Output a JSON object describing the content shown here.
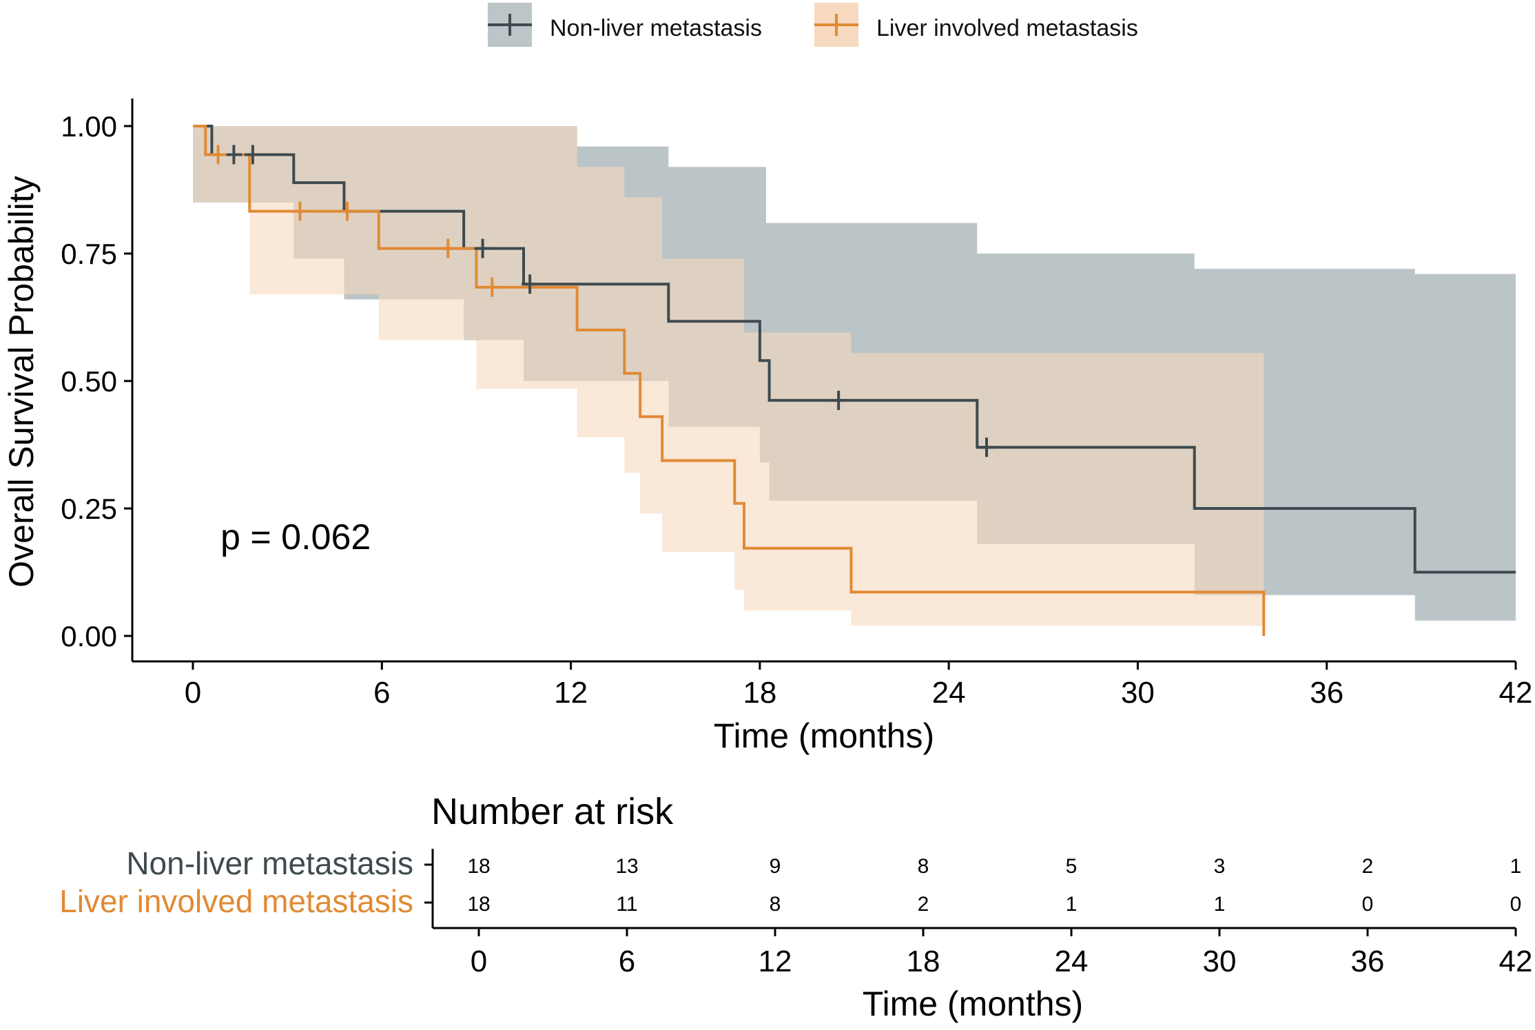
{
  "chart_data": {
    "type": "kaplan-meier",
    "title": "",
    "xlabel": "Time (months)",
    "ylabel": "Overall Survival Probability",
    "xlim": [
      0,
      42
    ],
    "ylim": [
      0,
      1
    ],
    "x_ticks": [
      "0",
      "6",
      "12",
      "18",
      "24",
      "30",
      "36",
      "42"
    ],
    "x_tick_values": [
      0,
      6,
      12,
      18,
      24,
      30,
      36,
      42
    ],
    "y_ticks": [
      "0.00",
      "0.25",
      "0.50",
      "0.75",
      "1.00"
    ],
    "y_tick_values": [
      0,
      0.25,
      0.5,
      0.75,
      1
    ],
    "annotation": "p = 0.062",
    "legend_position": "top",
    "series": [
      {
        "name": "Non-liver metastasis",
        "color": "#3e4a4e",
        "fill": "#8e9ea2",
        "steps": [
          [
            0,
            1.0
          ],
          [
            0.6,
            0.944
          ],
          [
            3.2,
            0.889
          ],
          [
            4.8,
            0.833
          ],
          [
            8.6,
            0.76
          ],
          [
            10.5,
            0.69
          ],
          [
            15.1,
            0.617
          ],
          [
            18.0,
            0.54
          ],
          [
            18.3,
            0.462
          ],
          [
            24.9,
            0.37
          ],
          [
            31.8,
            0.25
          ],
          [
            38.8,
            0.125
          ],
          [
            42,
            0.125
          ]
        ],
        "lower": [
          [
            0,
            0.85
          ],
          [
            0.6,
            0.85
          ],
          [
            3.2,
            0.74
          ],
          [
            4.8,
            0.66
          ],
          [
            8.6,
            0.58
          ],
          [
            10.5,
            0.5
          ],
          [
            15.1,
            0.41
          ],
          [
            18.0,
            0.34
          ],
          [
            18.3,
            0.265
          ],
          [
            24.9,
            0.18
          ],
          [
            31.8,
            0.08
          ],
          [
            38.8,
            0.03
          ],
          [
            42,
            0.03
          ]
        ],
        "upper": [
          [
            0,
            1.0
          ],
          [
            10.5,
            1.0
          ],
          [
            12.2,
            0.96
          ],
          [
            15.1,
            0.92
          ],
          [
            18.2,
            0.81
          ],
          [
            24.9,
            0.75
          ],
          [
            31.8,
            0.72
          ],
          [
            38.8,
            0.71
          ],
          [
            42,
            0.71
          ]
        ],
        "censored": [
          [
            1.3,
            0.944
          ],
          [
            1.9,
            0.944
          ],
          [
            9.2,
            0.76
          ],
          [
            10.7,
            0.69
          ],
          [
            20.5,
            0.462
          ],
          [
            25.2,
            0.37
          ]
        ]
      },
      {
        "name": "Liver involved metastasis",
        "color": "#e08a35",
        "fill": "#f6d9be",
        "steps": [
          [
            0,
            1.0
          ],
          [
            0.4,
            0.944
          ],
          [
            1.8,
            0.833
          ],
          [
            5.9,
            0.76
          ],
          [
            9.0,
            0.684
          ],
          [
            12.2,
            0.6
          ],
          [
            13.7,
            0.515
          ],
          [
            14.2,
            0.43
          ],
          [
            14.9,
            0.344
          ],
          [
            17.2,
            0.26
          ],
          [
            17.5,
            0.172
          ],
          [
            20.9,
            0.086
          ],
          [
            34.0,
            0.086
          ],
          [
            34.0,
            0.0
          ]
        ],
        "lower": [
          [
            0,
            0.85
          ],
          [
            0.4,
            0.85
          ],
          [
            1.8,
            0.67
          ],
          [
            5.9,
            0.58
          ],
          [
            9.0,
            0.485
          ],
          [
            12.2,
            0.39
          ],
          [
            13.7,
            0.32
          ],
          [
            14.2,
            0.24
          ],
          [
            14.9,
            0.165
          ],
          [
            17.2,
            0.09
          ],
          [
            17.5,
            0.05
          ],
          [
            20.9,
            0.02
          ],
          [
            34.0,
            0.02
          ]
        ],
        "upper": [
          [
            0,
            1.0
          ],
          [
            9.0,
            1.0
          ],
          [
            12.2,
            0.92
          ],
          [
            13.7,
            0.86
          ],
          [
            14.9,
            0.74
          ],
          [
            17.5,
            0.595
          ],
          [
            20.9,
            0.555
          ],
          [
            34.0,
            0.555
          ]
        ],
        "censored": [
          [
            0.8,
            0.944
          ],
          [
            3.4,
            0.833
          ],
          [
            4.9,
            0.833
          ],
          [
            8.1,
            0.76
          ],
          [
            9.5,
            0.684
          ]
        ]
      }
    ],
    "risk_table": {
      "title": "Number at risk",
      "xlabel": "Time (months)",
      "times": [
        "0",
        "6",
        "12",
        "18",
        "24",
        "30",
        "36",
        "42"
      ],
      "rows": [
        {
          "name": "Non-liver metastasis",
          "color": "#3e4a4e",
          "counts": [
            "18",
            "13",
            "9",
            "8",
            "5",
            "3",
            "2",
            "1"
          ]
        },
        {
          "name": "Liver involved metastasis",
          "color": "#e08a35",
          "counts": [
            "18",
            "11",
            "8",
            "2",
            "1",
            "1",
            "0",
            "0"
          ]
        }
      ]
    }
  }
}
